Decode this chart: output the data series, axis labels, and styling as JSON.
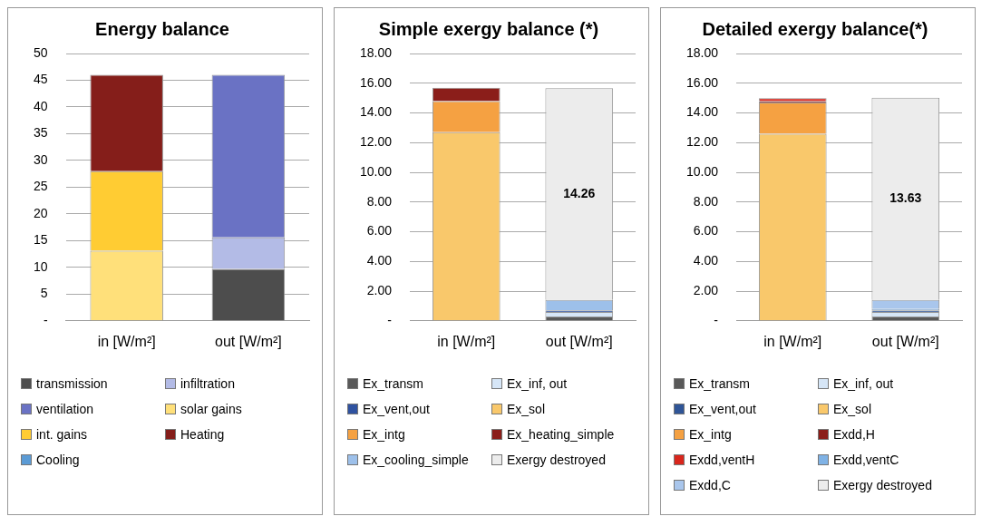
{
  "chart_data": [
    {
      "type": "bar",
      "title": "Energy balance",
      "categories": [
        "in [W/m²]",
        "out [W/m²]"
      ],
      "stacked": true,
      "ylim": [
        0,
        50
      ],
      "yticks": [
        {
          "value": 0,
          "label": "-"
        },
        5,
        10,
        15,
        20,
        25,
        30,
        35,
        40,
        45,
        50
      ],
      "grid": "y",
      "legend": "bottom",
      "series": [
        {
          "name": "transmission",
          "color": "#4d4d4d",
          "values": [
            null,
            9.7
          ]
        },
        {
          "name": "infiltration",
          "color": "#b3bbe6",
          "values": [
            null,
            5.9
          ]
        },
        {
          "name": "ventilation",
          "color": "#6a72c4",
          "values": [
            null,
            30.4
          ]
        },
        {
          "name": "solar gains",
          "color": "#ffe07a",
          "values": [
            13.1,
            null
          ]
        },
        {
          "name": "int. gains",
          "color": "#ffcc33",
          "values": [
            14.9,
            null
          ]
        },
        {
          "name": "Heating",
          "color": "#851e1a",
          "values": [
            18,
            null
          ]
        },
        {
          "name": "Cooling",
          "color": "#5b9bd5",
          "values": [
            null,
            null
          ]
        }
      ]
    },
    {
      "type": "bar",
      "title": "Simple exergy balance (*)",
      "categories": [
        "in [W/m²]",
        "out [W/m²]"
      ],
      "stacked": true,
      "ylim": [
        0,
        18
      ],
      "yticks": [
        {
          "value": 0,
          "label": "-"
        },
        {
          "value": 2,
          "label": "2.00"
        },
        {
          "value": 4,
          "label": "4.00"
        },
        {
          "value": 6,
          "label": "6.00"
        },
        {
          "value": 8,
          "label": "8.00"
        },
        {
          "value": 10,
          "label": "10.00"
        },
        {
          "value": 12,
          "label": "12.00"
        },
        {
          "value": 14,
          "label": "14.00"
        },
        {
          "value": 16,
          "label": "16.00"
        },
        {
          "value": 18,
          "label": "18.00"
        }
      ],
      "grid": "y",
      "legend": "bottom",
      "series": [
        {
          "name": "Ex_transm",
          "color": "#595959",
          "values": [
            null,
            0.3
          ]
        },
        {
          "name": "Ex_inf, out",
          "color": "#d6e6f7",
          "values": [
            null,
            0.3
          ]
        },
        {
          "name": "Ex_vent,out",
          "color": "#2f52a0",
          "values": [
            null,
            0.1
          ]
        },
        {
          "name": "Ex_sol",
          "color": "#f9c86b",
          "values": [
            12.7,
            null
          ]
        },
        {
          "name": "Ex_intg",
          "color": "#f5a142",
          "values": [
            2.1,
            null
          ]
        },
        {
          "name": "Ex_heating_simple",
          "color": "#8b1e1a",
          "values": [
            0.9,
            null
          ]
        },
        {
          "name": "Ex_cooling_simple",
          "color": "#9dc0ea",
          "values": [
            null,
            0.7
          ]
        },
        {
          "name": "Exergy destroyed",
          "color": "#ececec",
          "values": [
            null,
            14.26
          ],
          "value_labels": [
            null,
            "14.26"
          ]
        }
      ]
    },
    {
      "type": "bar",
      "title": "Detailed exergy balance(*)",
      "categories": [
        "in [W/m²]",
        "out [W/m²]"
      ],
      "stacked": true,
      "ylim": [
        0,
        18
      ],
      "yticks": [
        {
          "value": 0,
          "label": "-"
        },
        {
          "value": 2,
          "label": "2.00"
        },
        {
          "value": 4,
          "label": "4.00"
        },
        {
          "value": 6,
          "label": "6.00"
        },
        {
          "value": 8,
          "label": "8.00"
        },
        {
          "value": 10,
          "label": "10.00"
        },
        {
          "value": 12,
          "label": "12.00"
        },
        {
          "value": 14,
          "label": "14.00"
        },
        {
          "value": 16,
          "label": "16.00"
        },
        {
          "value": 18,
          "label": "18.00"
        }
      ],
      "grid": "y",
      "legend": "bottom",
      "series": [
        {
          "name": "Ex_transm",
          "color": "#595959",
          "values": [
            null,
            0.3
          ]
        },
        {
          "name": "Ex_inf, out",
          "color": "#d6e6f7",
          "values": [
            null,
            0.3
          ]
        },
        {
          "name": "Ex_vent,out",
          "color": "#2f5597",
          "values": [
            null,
            0.1
          ]
        },
        {
          "name": "Ex_sol",
          "color": "#f9c86b",
          "values": [
            12.6,
            null
          ]
        },
        {
          "name": "Ex_intg",
          "color": "#f5a142",
          "values": [
            2.1,
            null
          ]
        },
        {
          "name": "Exdd,H",
          "color": "#8b1e1a",
          "values": [
            0.1,
            null
          ]
        },
        {
          "name": "Exdd,ventH",
          "color": "#d9261c",
          "values": [
            0.2,
            null
          ]
        },
        {
          "name": "Exdd,ventC",
          "color": "#7fb2e5",
          "values": [
            null,
            0.1
          ]
        },
        {
          "name": "Exdd,C",
          "color": "#a9c6ec",
          "values": [
            null,
            0.6
          ]
        },
        {
          "name": "Exergy destroyed",
          "color": "#ececec",
          "values": [
            null,
            13.63
          ],
          "value_labels": [
            null,
            "13.63"
          ]
        }
      ]
    }
  ]
}
